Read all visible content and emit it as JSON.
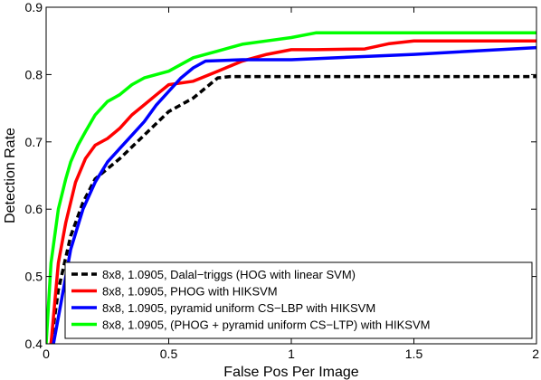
{
  "chart_data": {
    "type": "line",
    "title": "",
    "xlabel": "False Pos Per Image",
    "ylabel": "Detection Rate",
    "xlim": [
      0,
      2
    ],
    "ylim": [
      0.4,
      0.9
    ],
    "xticks": [
      0,
      0.5,
      1,
      1.5,
      2
    ],
    "xtick_labels": [
      "0",
      "0.5",
      "1",
      "1.5",
      "2"
    ],
    "yticks": [
      0.4,
      0.5,
      0.6,
      0.7,
      0.8,
      0.9
    ],
    "ytick_labels": [
      "0.4",
      "0.5",
      "0.6",
      "0.7",
      "0.8",
      "0.9"
    ],
    "grid": false,
    "legend_position": "bottom-right",
    "series": [
      {
        "name": "8x8, 1.0905, Dalal−triggs (HOG with linear SVM)",
        "color": "#000000",
        "dashed": true,
        "points": [
          [
            0.02,
            0.4
          ],
          [
            0.05,
            0.48
          ],
          [
            0.1,
            0.56
          ],
          [
            0.15,
            0.61
          ],
          [
            0.2,
            0.645
          ],
          [
            0.3,
            0.675
          ],
          [
            0.4,
            0.71
          ],
          [
            0.5,
            0.745
          ],
          [
            0.6,
            0.765
          ],
          [
            0.7,
            0.795
          ],
          [
            0.75,
            0.797
          ],
          [
            2.0,
            0.797
          ]
        ]
      },
      {
        "name": "8x8, 1.0905, PHOG with HIKSVM",
        "color": "#ff0000",
        "dashed": false,
        "points": [
          [
            0.02,
            0.4
          ],
          [
            0.05,
            0.52
          ],
          [
            0.08,
            0.58
          ],
          [
            0.12,
            0.64
          ],
          [
            0.16,
            0.675
          ],
          [
            0.2,
            0.695
          ],
          [
            0.25,
            0.705
          ],
          [
            0.3,
            0.72
          ],
          [
            0.35,
            0.74
          ],
          [
            0.4,
            0.755
          ],
          [
            0.45,
            0.77
          ],
          [
            0.5,
            0.785
          ],
          [
            0.6,
            0.79
          ],
          [
            0.7,
            0.805
          ],
          [
            0.8,
            0.82
          ],
          [
            0.9,
            0.83
          ],
          [
            1.0,
            0.837
          ],
          [
            1.1,
            0.837
          ],
          [
            1.3,
            0.838
          ],
          [
            1.4,
            0.846
          ],
          [
            1.5,
            0.85
          ],
          [
            2.0,
            0.85
          ]
        ]
      },
      {
        "name": "8x8, 1.0905, pyramid uniform CS−LBP with HIKSVM",
        "color": "#0000ff",
        "dashed": false,
        "points": [
          [
            0.03,
            0.4
          ],
          [
            0.06,
            0.46
          ],
          [
            0.1,
            0.54
          ],
          [
            0.15,
            0.6
          ],
          [
            0.2,
            0.64
          ],
          [
            0.25,
            0.67
          ],
          [
            0.3,
            0.69
          ],
          [
            0.35,
            0.71
          ],
          [
            0.4,
            0.73
          ],
          [
            0.45,
            0.755
          ],
          [
            0.5,
            0.775
          ],
          [
            0.55,
            0.795
          ],
          [
            0.6,
            0.81
          ],
          [
            0.65,
            0.82
          ],
          [
            0.8,
            0.822
          ],
          [
            1.0,
            0.822
          ],
          [
            1.5,
            0.83
          ],
          [
            2.0,
            0.84
          ]
        ]
      },
      {
        "name": "8x8, 1.0905, (PHOG + pyramid uniform CS−LTP) with HIKSVM",
        "color": "#00ff00",
        "dashed": false,
        "points": [
          [
            0.0,
            0.4
          ],
          [
            0.02,
            0.52
          ],
          [
            0.05,
            0.6
          ],
          [
            0.08,
            0.645
          ],
          [
            0.1,
            0.67
          ],
          [
            0.13,
            0.695
          ],
          [
            0.16,
            0.715
          ],
          [
            0.2,
            0.74
          ],
          [
            0.25,
            0.76
          ],
          [
            0.3,
            0.77
          ],
          [
            0.35,
            0.785
          ],
          [
            0.4,
            0.795
          ],
          [
            0.5,
            0.805
          ],
          [
            0.6,
            0.825
          ],
          [
            0.7,
            0.835
          ],
          [
            0.8,
            0.845
          ],
          [
            0.9,
            0.85
          ],
          [
            1.0,
            0.855
          ],
          [
            1.1,
            0.862
          ],
          [
            2.0,
            0.862
          ]
        ]
      }
    ]
  }
}
